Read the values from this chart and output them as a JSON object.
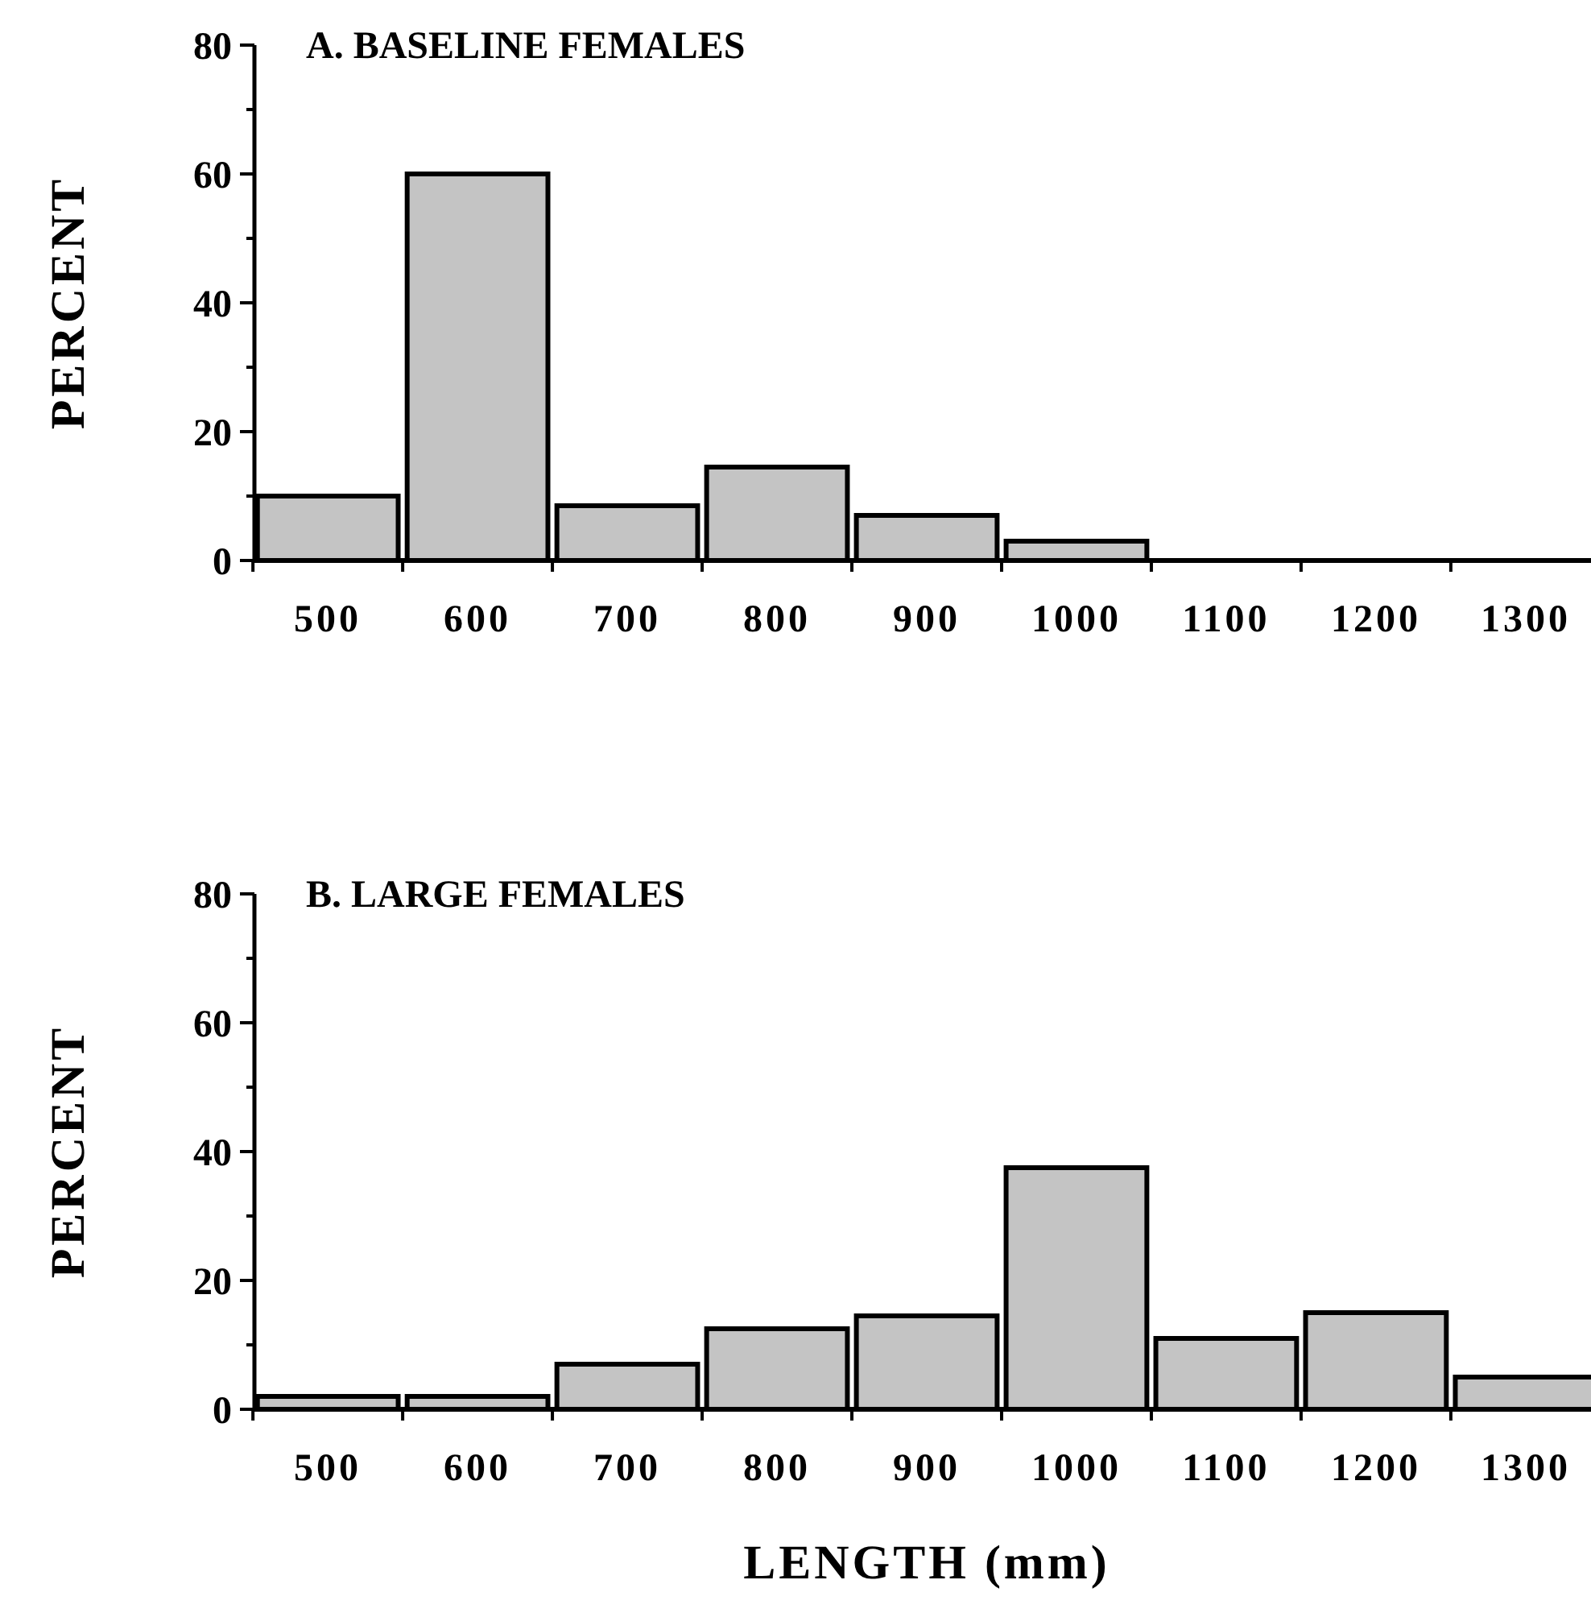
{
  "chart_data": [
    {
      "type": "bar",
      "title": "A.  BASELINE  FEMALES",
      "ylabel": "PERCENT",
      "categories": [
        "500",
        "600",
        "700",
        "800",
        "900",
        "1000",
        "1100",
        "1200",
        "1300"
      ],
      "values": [
        10,
        60,
        8.5,
        14.5,
        7,
        3,
        0,
        0,
        0
      ],
      "color": "#c4c4c4",
      "ylim": [
        0,
        80
      ],
      "yticks": [
        0,
        {
          "value": 10,
          "label": null
        },
        20,
        {
          "value": 30,
          "label": null
        },
        40,
        {
          "value": 50,
          "label": null
        },
        60,
        {
          "value": 70,
          "label": null
        },
        80
      ],
      "grid": false
    },
    {
      "type": "bar",
      "title": "B.  LARGE  FEMALES",
      "ylabel": "PERCENT",
      "xlabel": "LENGTH  (mm)",
      "categories": [
        "500",
        "600",
        "700",
        "800",
        "900",
        "1000",
        "1100",
        "1200",
        "1300"
      ],
      "values": [
        2,
        2,
        7,
        12.5,
        14.5,
        37.5,
        11,
        15,
        5
      ],
      "color": "#c4c4c4",
      "ylim": [
        0,
        80
      ],
      "yticks": [
        0,
        {
          "value": 10,
          "label": null
        },
        20,
        {
          "value": 30,
          "label": null
        },
        40,
        {
          "value": 50,
          "label": null
        },
        60,
        {
          "value": 70,
          "label": null
        },
        80
      ],
      "grid": false
    }
  ]
}
